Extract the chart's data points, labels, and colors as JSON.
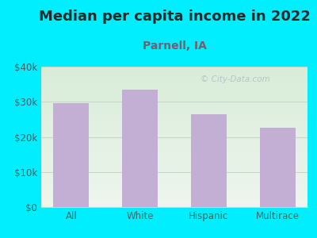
{
  "title": "Median per capita income in 2022",
  "subtitle": "Parnell, IA",
  "categories": [
    "All",
    "White",
    "Hispanic",
    "Multirace"
  ],
  "values": [
    29500,
    33500,
    26500,
    22500
  ],
  "bar_color": "#c4afd4",
  "title_fontsize": 13,
  "subtitle_fontsize": 10,
  "tick_fontsize": 8.5,
  "ylim": [
    0,
    40000
  ],
  "yticks": [
    0,
    10000,
    20000,
    30000,
    40000
  ],
  "ytick_labels": [
    "$0",
    "$10k",
    "$20k",
    "$30k",
    "$40k"
  ],
  "background_outer": "#00eeff",
  "watermark": "© City-Data.com",
  "title_color": "#2a2a2a",
  "subtitle_color": "#7a5c6e",
  "tick_color": "#4a6060",
  "grid_color": "#c8d8c8",
  "bg_top": "#d8ecd8",
  "bg_bottom": "#eef5ee"
}
